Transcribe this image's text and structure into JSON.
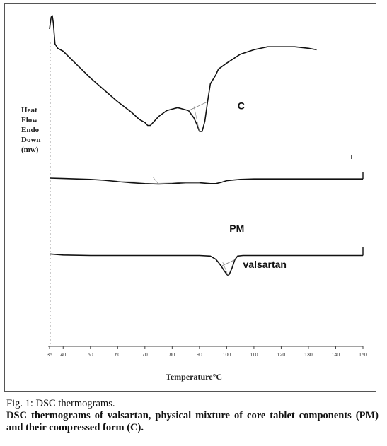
{
  "caption": {
    "title": "Fig. 1: DSC thermograms.",
    "body": "DSC thermograms of valsartan, physical mixture of core tablet components (PM) and their compressed form (C)."
  },
  "chart_data": {
    "type": "line",
    "title": "",
    "xlabel": "Temperature°C",
    "ylabel_lines": [
      "Heat",
      "Flow",
      "Endo",
      "Down",
      "(mw)"
    ],
    "xlim": [
      35,
      150
    ],
    "x_ticks": [
      35,
      40,
      50,
      60,
      70,
      80,
      90,
      100,
      110,
      120,
      130,
      140,
      150
    ],
    "x_tick_labels": [
      "35",
      "40",
      "50",
      "60",
      "70",
      "80",
      "90",
      "100",
      "110",
      "120",
      "130",
      "140",
      "150"
    ],
    "y_ticks": false,
    "grid": false,
    "legend": "none",
    "series": [
      {
        "name": "C",
        "label_at": [
          104,
          "above"
        ],
        "x": [
          35,
          35.6,
          36,
          36.4,
          37,
          38,
          40,
          45,
          50,
          55,
          60,
          65,
          68,
          70,
          71,
          72,
          73,
          75,
          78,
          80,
          82,
          84,
          86,
          88,
          89,
          90,
          91,
          92,
          93,
          94,
          96,
          97,
          100,
          105,
          110,
          115,
          120,
          125,
          130,
          133
        ],
        "y": [
          0.9,
          0.98,
          0.99,
          0.94,
          0.8,
          0.77,
          0.75,
          0.66,
          0.57,
          0.49,
          0.41,
          0.34,
          0.29,
          0.27,
          0.25,
          0.25,
          0.27,
          0.31,
          0.35,
          0.36,
          0.37,
          0.36,
          0.35,
          0.3,
          0.26,
          0.21,
          0.21,
          0.28,
          0.41,
          0.53,
          0.59,
          0.63,
          0.67,
          0.73,
          0.76,
          0.78,
          0.78,
          0.78,
          0.77,
          0.76
        ]
      },
      {
        "name": "PM",
        "label_at": [
          101,
          "below"
        ],
        "x": [
          35,
          40,
          50,
          55,
          60,
          65,
          70,
          75,
          80,
          85,
          90,
          92,
          94,
          96,
          98,
          100,
          105,
          110,
          120,
          130,
          140,
          150
        ],
        "y": [
          0.8,
          0.79,
          0.77,
          0.75,
          0.72,
          0.69,
          0.67,
          0.66,
          0.67,
          0.69,
          0.69,
          0.68,
          0.67,
          0.67,
          0.7,
          0.74,
          0.77,
          0.78,
          0.78,
          0.78,
          0.78,
          0.78
        ]
      },
      {
        "name": "valsartan",
        "label_at": [
          106,
          "right"
        ],
        "x": [
          35,
          40,
          50,
          60,
          70,
          80,
          90,
          94,
          96,
          97,
          98,
          99,
          100,
          100.5,
          101,
          102,
          103,
          104,
          106,
          110,
          120,
          130,
          140,
          150
        ],
        "y": [
          0.81,
          0.79,
          0.78,
          0.78,
          0.78,
          0.78,
          0.78,
          0.77,
          0.71,
          0.65,
          0.58,
          0.5,
          0.43,
          0.4,
          0.43,
          0.55,
          0.7,
          0.77,
          0.78,
          0.78,
          0.78,
          0.78,
          0.78,
          0.78
        ]
      }
    ]
  }
}
